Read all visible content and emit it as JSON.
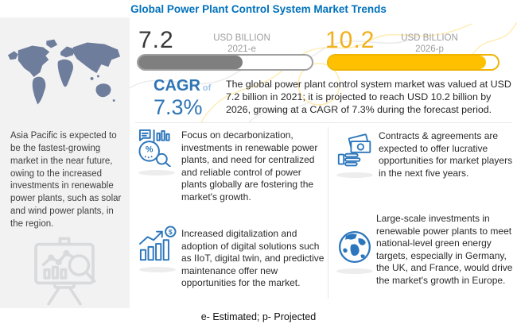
{
  "title": "Global Power Plant Control System Market Trends",
  "chart_data": {
    "type": "bar",
    "categories": [
      "2021-e",
      "2026-p"
    ],
    "values": [
      7.2,
      10.2
    ],
    "unit": "USD BILLION",
    "title": "Global Power Plant Control System Market Trends",
    "cagr_percent": 7.3,
    "legend_note": "e- Estimated; p- Projected"
  },
  "stats": {
    "current": {
      "value": "7.2",
      "unit": "USD BILLION",
      "year": "2021-e",
      "fill_pct": 60
    },
    "projected": {
      "value": "10.2",
      "unit": "USD BILLION",
      "year": "2026-p",
      "fill_pct": 93
    }
  },
  "cagr": {
    "label": "CAGR",
    "of_word": "of",
    "value": "7.3%"
  },
  "summary": "The global power plant control system market was valued at USD 7.2 billion in 2021; it is projected to reach USD 10.2 billion by 2026, growing at a CAGR of 7.3% during the forecast period.",
  "sidebar": {
    "map_icon": "world-map",
    "region_note": "Asia Pacific is expected to be the fastest-growing market in the near future, owing to the increased investments in renewable power plants, such as solar and wind power plants, in the region.",
    "bottom_icon": "presentation-chart-magnifier-icon"
  },
  "insights": [
    {
      "icon": "decarbonization-analysis-icon",
      "text": "Focus on decarbonization, investments in renewable power plants, and need for centralized and reliable control of power plants globally are fostering the market's growth."
    },
    {
      "icon": "contracts-money-hand-icon",
      "text": "Contracts & agreements are expected to offer lucrative opportunities for market players in the next five years."
    },
    {
      "icon": "digital-growth-chart-icon",
      "text": "Increased digitalization and adoption of digital solutions such as IIoT, digital twin, and predictive maintenance offer new opportunities for the market."
    },
    {
      "icon": "europe-globe-icon",
      "text": "Large-scale investments in renewable power plants to meet national-level green energy targets, especially in Germany, the UK, and France, would drive the market's growth in Europe."
    }
  ],
  "footer": "e- Estimated; p- Projected",
  "colors": {
    "title_blue": "#0071BC",
    "accent_blue": "#2E74B5",
    "icon_blue": "#2B76BC",
    "light_blue": "#9DC3E6",
    "gold_number": "#F2B01E",
    "bar_yellow": "#FFC000",
    "bar_gray": "#7F7F7F",
    "map_slate": "#6E7D9B",
    "panel_gray": "#F2F2F3"
  }
}
